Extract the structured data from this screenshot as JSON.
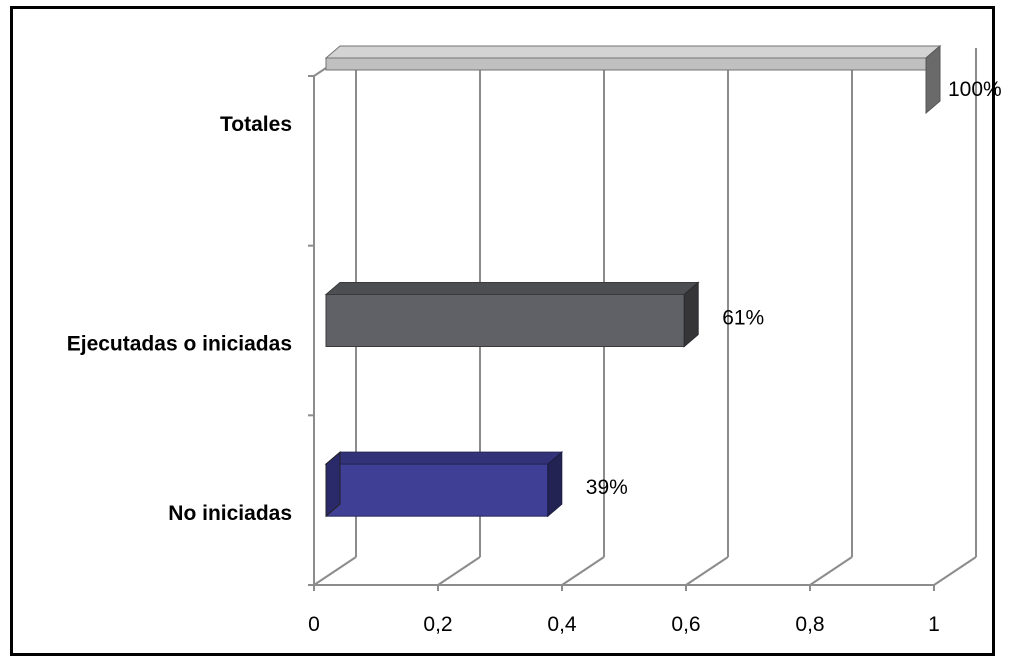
{
  "chart_data": {
    "type": "bar",
    "orientation": "horizontal",
    "style": "3d",
    "categories": [
      "No iniciadas",
      "Ejecutadas o iniciadas",
      "Totales"
    ],
    "values": [
      0.39,
      0.61,
      1.0
    ],
    "data_labels": [
      "39%",
      "61%",
      "100%"
    ],
    "bar_colors": [
      "#3f3f96",
      "#606166",
      "#c0c0c0"
    ],
    "xlim": [
      0,
      1
    ],
    "xticks": [
      0,
      0.2,
      0.4,
      0.6,
      0.8,
      1
    ],
    "xtick_labels": [
      "0",
      "0,2",
      "0,4",
      "0,6",
      "0,8",
      "1"
    ],
    "grid": true,
    "legend": "none"
  }
}
